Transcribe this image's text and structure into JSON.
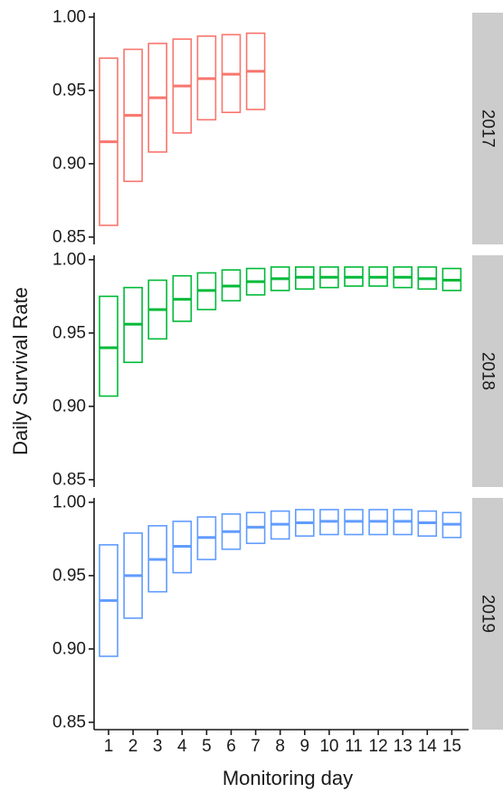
{
  "chart_data": {
    "type": "boxplot",
    "xlabel": "Monitoring day",
    "ylabel": "Daily Survival Rate",
    "x": [
      "1",
      "2",
      "3",
      "4",
      "5",
      "6",
      "7",
      "8",
      "9",
      "10",
      "11",
      "12",
      "13",
      "14",
      "15"
    ],
    "ylim": [
      0.845,
      1.003
    ],
    "yticks": [
      "0.85",
      "0.90",
      "0.95",
      "1.00"
    ],
    "facet_labels_position": "right",
    "grid": false,
    "panels": [
      {
        "label": "2017",
        "color": "#F8766D",
        "boxes": [
          {
            "x": 1,
            "low": 0.858,
            "mid": 0.915,
            "high": 0.972
          },
          {
            "x": 2,
            "low": 0.888,
            "mid": 0.933,
            "high": 0.978
          },
          {
            "x": 3,
            "low": 0.908,
            "mid": 0.945,
            "high": 0.982
          },
          {
            "x": 4,
            "low": 0.921,
            "mid": 0.953,
            "high": 0.985
          },
          {
            "x": 5,
            "low": 0.93,
            "mid": 0.958,
            "high": 0.987
          },
          {
            "x": 6,
            "low": 0.935,
            "mid": 0.961,
            "high": 0.988
          },
          {
            "x": 7,
            "low": 0.937,
            "mid": 0.963,
            "high": 0.989
          }
        ]
      },
      {
        "label": "2018",
        "color": "#00BA38",
        "boxes": [
          {
            "x": 1,
            "low": 0.907,
            "mid": 0.94,
            "high": 0.975
          },
          {
            "x": 2,
            "low": 0.93,
            "mid": 0.956,
            "high": 0.981
          },
          {
            "x": 3,
            "low": 0.946,
            "mid": 0.966,
            "high": 0.986
          },
          {
            "x": 4,
            "low": 0.958,
            "mid": 0.973,
            "high": 0.989
          },
          {
            "x": 5,
            "low": 0.966,
            "mid": 0.979,
            "high": 0.991
          },
          {
            "x": 6,
            "low": 0.972,
            "mid": 0.982,
            "high": 0.993
          },
          {
            "x": 7,
            "low": 0.976,
            "mid": 0.985,
            "high": 0.994
          },
          {
            "x": 8,
            "low": 0.979,
            "mid": 0.987,
            "high": 0.995
          },
          {
            "x": 9,
            "low": 0.98,
            "mid": 0.988,
            "high": 0.995
          },
          {
            "x": 10,
            "low": 0.981,
            "mid": 0.988,
            "high": 0.995
          },
          {
            "x": 11,
            "low": 0.982,
            "mid": 0.988,
            "high": 0.995
          },
          {
            "x": 12,
            "low": 0.982,
            "mid": 0.988,
            "high": 0.995
          },
          {
            "x": 13,
            "low": 0.981,
            "mid": 0.988,
            "high": 0.995
          },
          {
            "x": 14,
            "low": 0.98,
            "mid": 0.987,
            "high": 0.995
          },
          {
            "x": 15,
            "low": 0.979,
            "mid": 0.986,
            "high": 0.994
          }
        ]
      },
      {
        "label": "2019",
        "color": "#619CFF",
        "boxes": [
          {
            "x": 1,
            "low": 0.895,
            "mid": 0.933,
            "high": 0.971
          },
          {
            "x": 2,
            "low": 0.921,
            "mid": 0.95,
            "high": 0.979
          },
          {
            "x": 3,
            "low": 0.939,
            "mid": 0.961,
            "high": 0.984
          },
          {
            "x": 4,
            "low": 0.952,
            "mid": 0.97,
            "high": 0.987
          },
          {
            "x": 5,
            "low": 0.961,
            "mid": 0.976,
            "high": 0.99
          },
          {
            "x": 6,
            "low": 0.968,
            "mid": 0.98,
            "high": 0.992
          },
          {
            "x": 7,
            "low": 0.972,
            "mid": 0.983,
            "high": 0.993
          },
          {
            "x": 8,
            "low": 0.975,
            "mid": 0.985,
            "high": 0.994
          },
          {
            "x": 9,
            "low": 0.977,
            "mid": 0.986,
            "high": 0.995
          },
          {
            "x": 10,
            "low": 0.978,
            "mid": 0.987,
            "high": 0.995
          },
          {
            "x": 11,
            "low": 0.978,
            "mid": 0.987,
            "high": 0.995
          },
          {
            "x": 12,
            "low": 0.978,
            "mid": 0.987,
            "high": 0.995
          },
          {
            "x": 13,
            "low": 0.978,
            "mid": 0.987,
            "high": 0.995
          },
          {
            "x": 14,
            "low": 0.977,
            "mid": 0.986,
            "high": 0.994
          },
          {
            "x": 15,
            "low": 0.976,
            "mid": 0.985,
            "high": 0.993
          }
        ]
      }
    ]
  }
}
